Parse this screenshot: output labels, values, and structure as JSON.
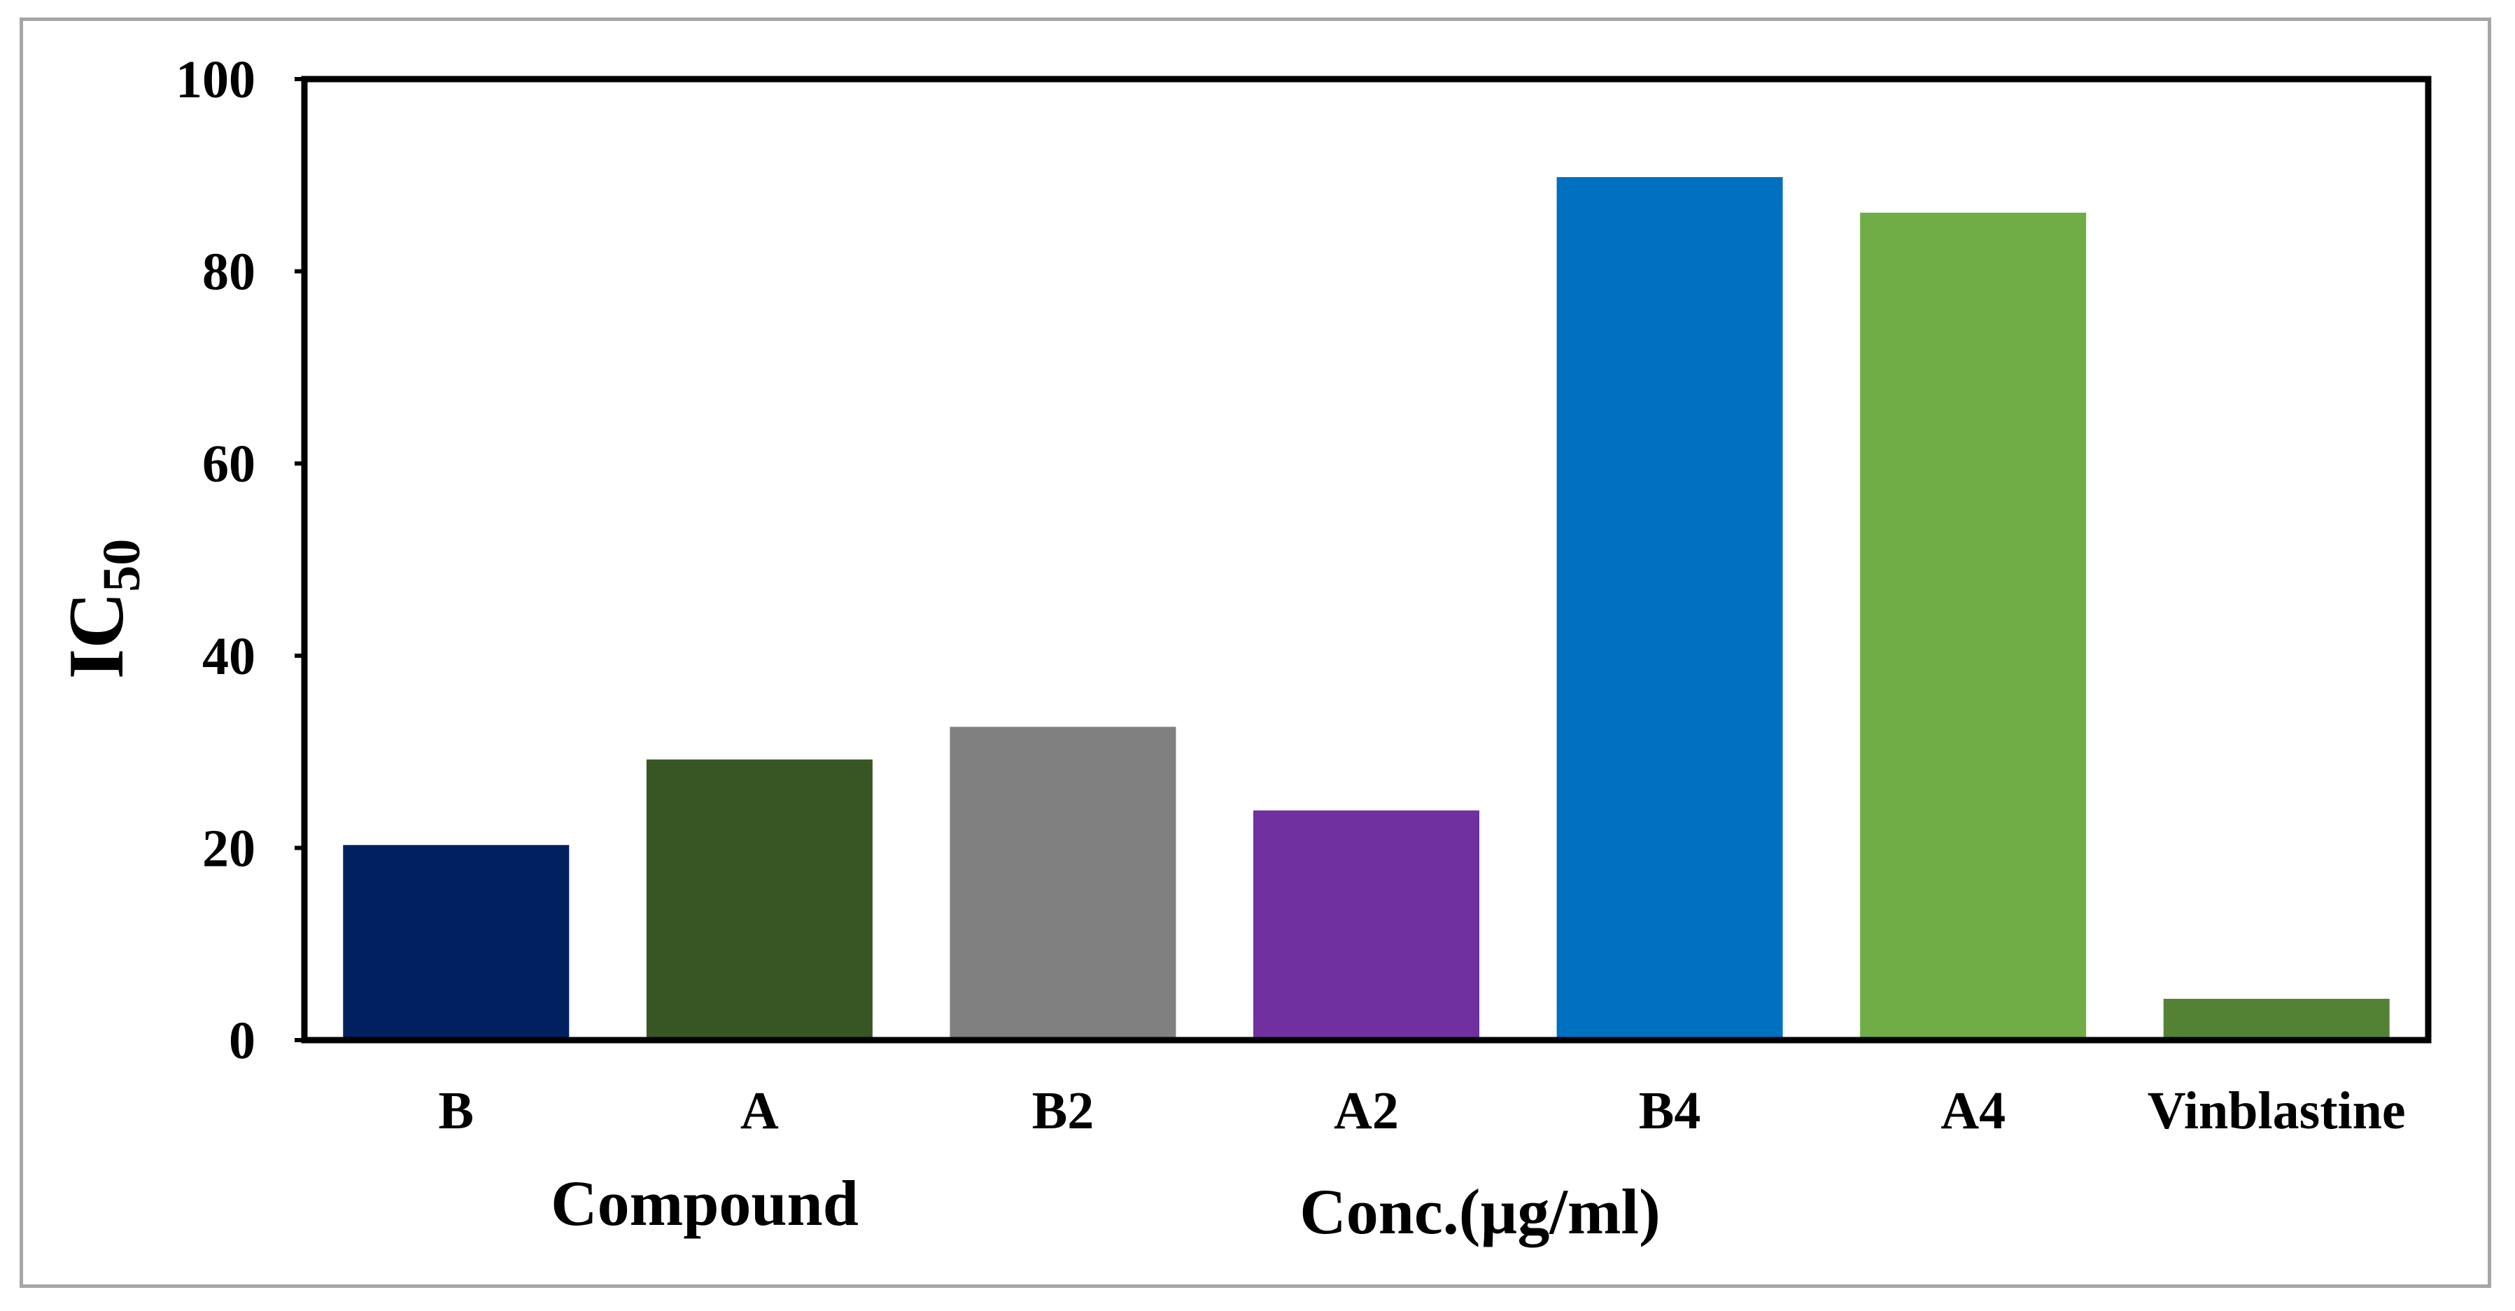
{
  "chart_data": {
    "type": "bar",
    "categories": [
      "B",
      "A",
      "B2",
      "A2",
      "B4",
      "A4",
      "Vinblastine"
    ],
    "values": [
      20.3,
      29.2,
      32.6,
      23.9,
      89.8,
      86.1,
      4.3
    ],
    "colors": [
      "#002060",
      "#375623",
      "#808080",
      "#7030a0",
      "#0070c0",
      "#70ad47",
      "#548235"
    ],
    "ylabel": "IC",
    "ylabel_sub": "50",
    "xlabel_left": "Compound",
    "xlabel_right": "Conc.(µg/ml)",
    "ylim": [
      0,
      100
    ],
    "yticks": [
      "0",
      "20",
      "40",
      "60",
      "80",
      "100"
    ],
    "grid": false,
    "legend": "none"
  }
}
